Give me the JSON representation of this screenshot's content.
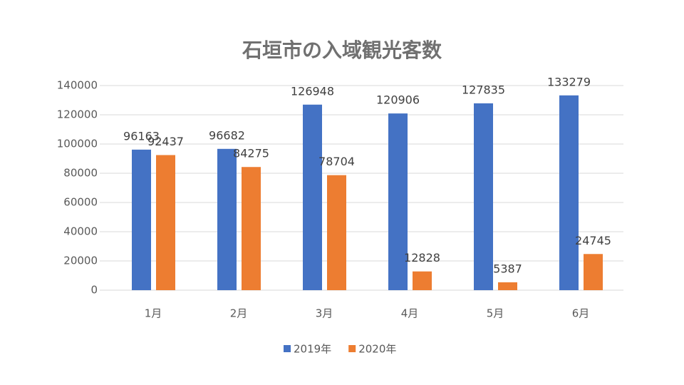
{
  "chart_data": {
    "type": "bar",
    "title": "石垣市の入域観光客数",
    "categories": [
      "1月",
      "2月",
      "3月",
      "4月",
      "5月",
      "6月"
    ],
    "series": [
      {
        "name": "2019年",
        "color": "#4472c4",
        "values": [
          96163,
          96682,
          126948,
          120906,
          127835,
          133279
        ]
      },
      {
        "name": "2020年",
        "color": "#ed7d31",
        "values": [
          92437,
          84275,
          78704,
          12828,
          5387,
          24745
        ]
      }
    ],
    "ylim": [
      0,
      140000
    ],
    "yticks": [
      0,
      20000,
      40000,
      60000,
      80000,
      100000,
      120000,
      140000
    ],
    "grid": true,
    "legend": "bottom"
  }
}
